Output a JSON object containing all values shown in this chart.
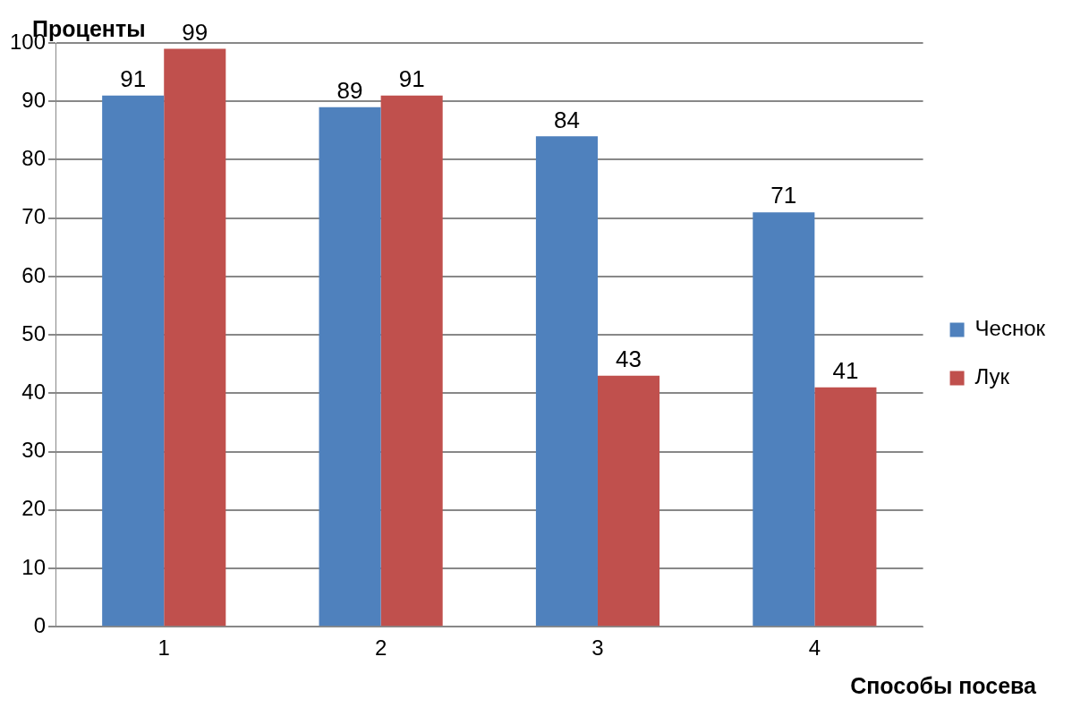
{
  "chart_data": {
    "type": "bar",
    "ylabel": "Проценты",
    "xlabel": "Способы посева",
    "categories": [
      "1",
      "2",
      "3",
      "4"
    ],
    "series": [
      {
        "name": "Чеснок",
        "color": "#4f81bd",
        "values": [
          91,
          89,
          84,
          71
        ]
      },
      {
        "name": "Лук",
        "color": "#c0504d",
        "values": [
          99,
          91,
          43,
          41
        ]
      }
    ],
    "ylim": [
      0,
      100
    ],
    "yticks": [
      0,
      10,
      20,
      30,
      40,
      50,
      60,
      70,
      80,
      90,
      100
    ],
    "grid": "y",
    "legend": "right",
    "data_labels": true
  }
}
